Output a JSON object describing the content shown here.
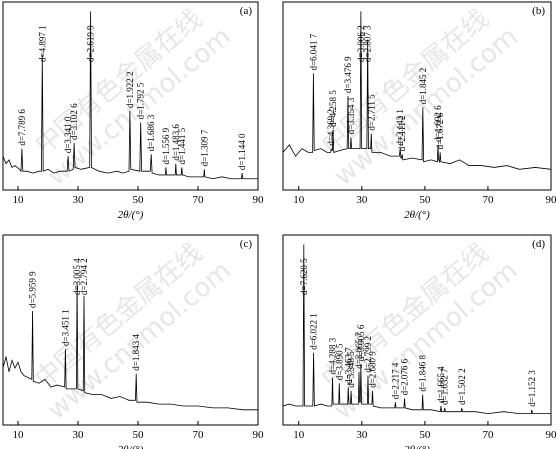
{
  "chart_data": [
    {
      "type": "line",
      "panel_label": "(a)",
      "xlabel": "2θ/(°)",
      "xlim": [
        5,
        90
      ],
      "ylim": [
        0,
        100
      ],
      "xticks": [
        10,
        30,
        50,
        70,
        90
      ],
      "color": "#000000",
      "x": [
        5,
        6,
        7,
        8,
        9,
        10.5,
        11,
        11.3,
        11.6,
        13,
        15,
        17,
        17.8,
        18.1,
        18.4,
        20,
        22,
        24,
        26.4,
        26.7,
        27,
        28.4,
        28.7,
        29,
        31,
        33.9,
        34.2,
        34.5,
        37,
        40,
        43,
        45,
        47,
        47.3,
        47.6,
        50.6,
        50.9,
        51.2,
        54.1,
        54.4,
        54.7,
        57,
        59.1,
        59.3,
        59.5,
        62.4,
        62.6,
        62.8,
        64.4,
        64.6,
        64.8,
        67,
        70,
        71.9,
        72.1,
        72.3,
        75,
        78,
        81,
        84.5,
        84.7,
        84.9,
        87,
        90
      ],
      "values": [
        18,
        14,
        16,
        12,
        13,
        11,
        10,
        22,
        10,
        10,
        9,
        10,
        10,
        72,
        10,
        11,
        9,
        10,
        10,
        18,
        10,
        11,
        25,
        12,
        11,
        12,
        95,
        12,
        10,
        9,
        10,
        9,
        10,
        42,
        11,
        10,
        36,
        10,
        10,
        19,
        9,
        8,
        8,
        12,
        8,
        8,
        14,
        8,
        8,
        12,
        8,
        7,
        7,
        7,
        11,
        7,
        6,
        7,
        6,
        6,
        9,
        6,
        6,
        6
      ],
      "annotations": [
        {
          "x": 11.3,
          "text": "d=7.789 6"
        },
        {
          "x": 18.1,
          "text": "d=4.897 1"
        },
        {
          "x": 26.7,
          "text": "d=3.341 0"
        },
        {
          "x": 28.7,
          "text": "d=3.102 6"
        },
        {
          "x": 34.2,
          "text": "d=2.619 9"
        },
        {
          "x": 47.3,
          "text": "d=1.922 2"
        },
        {
          "x": 50.9,
          "text": "d=1.792 5"
        },
        {
          "x": 54.4,
          "text": "d=1.686 3"
        },
        {
          "x": 59.3,
          "text": "d=1.556 9"
        },
        {
          "x": 62.6,
          "text": "d=1.483 6"
        },
        {
          "x": 64.6,
          "text": "d=1.441 5"
        },
        {
          "x": 72.1,
          "text": "d=1.309 7"
        },
        {
          "x": 84.7,
          "text": "d=1.144 0"
        }
      ]
    },
    {
      "type": "line",
      "panel_label": "(b)",
      "xlabel": "2θ/(°)",
      "xlim": [
        5,
        90
      ],
      "ylim": [
        0,
        100
      ],
      "xticks": [
        10,
        30,
        50,
        70,
        90
      ],
      "color": "#000000",
      "x": [
        5,
        7,
        9,
        11,
        13,
        14.4,
        14.65,
        14.9,
        17,
        19,
        20.1,
        20.3,
        20.5,
        20.65,
        20.85,
        21.1,
        23,
        25.35,
        25.6,
        25.85,
        26.35,
        26.55,
        26.75,
        28,
        29.45,
        29.7,
        29.95,
        31.6,
        31.85,
        32.1,
        32.8,
        33,
        33.2,
        36,
        39,
        41.9,
        42.15,
        42.4,
        42.6,
        42.8,
        43,
        46,
        49.1,
        49.35,
        49.6,
        52,
        53.95,
        54.15,
        54.35,
        54.65,
        54.85,
        55.05,
        58,
        61,
        64,
        68,
        72,
        76,
        80,
        85,
        90
      ],
      "values": [
        20,
        24,
        18,
        22,
        20,
        20,
        62,
        21,
        22,
        20,
        20,
        22,
        21,
        21,
        32,
        20,
        21,
        22,
        50,
        22,
        22,
        28,
        22,
        22,
        22,
        95,
        22,
        22,
        80,
        22,
        22,
        30,
        20,
        20,
        18,
        18,
        22,
        17,
        17,
        19,
        16,
        17,
        16,
        44,
        15,
        16,
        15,
        24,
        16,
        15,
        20,
        15,
        14,
        16,
        13,
        13,
        12,
        13,
        11,
        12,
        11
      ],
      "annotations": [
        {
          "x": 14.65,
          "text": "d=6.041 7"
        },
        {
          "x": 20.3,
          "text": "d=4.369 2"
        },
        {
          "x": 20.85,
          "text": "d=4.258 5"
        },
        {
          "x": 25.6,
          "text": "d=3.476 9"
        },
        {
          "x": 26.55,
          "text": "d=3.354 3"
        },
        {
          "x": 29.7,
          "text": "d=3.006 2"
        },
        {
          "x": 31.85,
          "text": "d=2.807 3"
        },
        {
          "x": 33.0,
          "text": "d=2.711 5"
        },
        {
          "x": 42.15,
          "text": "d=2.142 1"
        },
        {
          "x": 42.8,
          "text": "d=2.111 2"
        },
        {
          "x": 49.35,
          "text": "d=1.845 2"
        },
        {
          "x": 54.15,
          "text": "d=1.692 6"
        },
        {
          "x": 54.85,
          "text": "d=1.672 6"
        }
      ]
    },
    {
      "type": "line",
      "panel_label": "(c)",
      "xlabel": "2θ/(°)",
      "xlim": [
        5,
        90
      ],
      "ylim": [
        0,
        100
      ],
      "xticks": [
        10,
        30,
        50,
        70,
        90
      ],
      "color": "#000000",
      "x": [
        5,
        6,
        7,
        8,
        9,
        10,
        11,
        12,
        14.6,
        14.85,
        15.1,
        17,
        19,
        21,
        23,
        25.55,
        25.8,
        26.05,
        27.5,
        29.45,
        29.7,
        29.95,
        31.75,
        32,
        32.25,
        35,
        38,
        41,
        44,
        47,
        49.15,
        49.4,
        49.65,
        53,
        57,
        61,
        65,
        70,
        75,
        80,
        85,
        90
      ],
      "values": [
        30,
        36,
        28,
        34,
        30,
        33,
        28,
        26,
        24,
        60,
        23,
        22,
        24,
        20,
        21,
        20,
        40,
        19,
        19,
        19,
        75,
        19,
        18,
        68,
        17,
        16,
        16,
        14,
        15,
        13,
        13,
        27,
        12,
        12,
        11,
        11,
        10,
        10,
        9,
        9,
        8,
        8
      ],
      "annotations": [
        {
          "x": 14.85,
          "text": "d=5.959 9"
        },
        {
          "x": 25.8,
          "text": "d=3.451 1"
        },
        {
          "x": 29.7,
          "text": "d=3.005 4"
        },
        {
          "x": 32.0,
          "text": "d=2.794 2"
        },
        {
          "x": 49.4,
          "text": "d=1.843 4"
        }
      ]
    },
    {
      "type": "line",
      "panel_label": "(d)",
      "xlabel": "2θ/(°)",
      "xlim": [
        5,
        90
      ],
      "ylim": [
        0,
        100
      ],
      "xticks": [
        10,
        30,
        50,
        70,
        90
      ],
      "color": "#000000",
      "x": [
        5,
        7,
        9,
        11.35,
        11.6,
        11.85,
        13,
        14.45,
        14.7,
        14.95,
        17,
        19,
        20.5,
        20.7,
        20.9,
        22.65,
        22.85,
        23.05,
        25.5,
        25.7,
        25.9,
        26.4,
        26.6,
        26.8,
        28.9,
        29.1,
        29.3,
        29.5,
        29.7,
        29.9,
        31.75,
        31.95,
        32.15,
        33.2,
        33.4,
        33.6,
        36,
        38,
        40.45,
        40.65,
        40.85,
        43.35,
        43.55,
        43.75,
        46,
        49.1,
        49.3,
        49.5,
        52,
        54.9,
        55.1,
        55.3,
        56.1,
        56.3,
        56.5,
        59,
        61.5,
        61.7,
        61.9,
        66,
        70,
        75,
        80,
        83.7,
        83.9,
        84.1,
        87,
        90
      ],
      "values": [
        10,
        11,
        10,
        10,
        95,
        10,
        10,
        10,
        38,
        10,
        11,
        10,
        10,
        25,
        11,
        11,
        22,
        11,
        11,
        20,
        11,
        11,
        18,
        11,
        11,
        28,
        12,
        12,
        32,
        11,
        11,
        26,
        11,
        11,
        18,
        10,
        9,
        9,
        9,
        12,
        9,
        9,
        14,
        9,
        8,
        8,
        16,
        8,
        8,
        7,
        10,
        7,
        7,
        9,
        7,
        7,
        7,
        9,
        7,
        7,
        6,
        7,
        6,
        6,
        8,
        6,
        6,
        6
      ],
      "annotations": [
        {
          "x": 11.6,
          "text": "d=7.620 5"
        },
        {
          "x": 14.7,
          "text": "d=6.022 1"
        },
        {
          "x": 20.7,
          "text": "d=4.288 3"
        },
        {
          "x": 22.85,
          "text": "d=3.890 5"
        },
        {
          "x": 25.7,
          "text": "d=3.463 7"
        },
        {
          "x": 26.6,
          "text": "d=3.348 5"
        },
        {
          "x": 29.1,
          "text": "d=3.065 7"
        },
        {
          "x": 29.7,
          "text": "d=3.005 6"
        },
        {
          "x": 31.95,
          "text": "d=2.799 2"
        },
        {
          "x": 33.4,
          "text": "d=2.680 9"
        },
        {
          "x": 40.65,
          "text": "d=2.217 4"
        },
        {
          "x": 43.55,
          "text": "d=2.076 6"
        },
        {
          "x": 49.3,
          "text": "d=1.846 8"
        },
        {
          "x": 55.1,
          "text": "d=1.665 4"
        },
        {
          "x": 56.3,
          "text": "d=1.632 7"
        },
        {
          "x": 61.7,
          "text": "d=1.502 2"
        },
        {
          "x": 83.9,
          "text": "d=1.152 3"
        }
      ]
    }
  ],
  "watermark": {
    "text": "中国有色金属在线",
    "url": "www.cnnmol.com"
  }
}
